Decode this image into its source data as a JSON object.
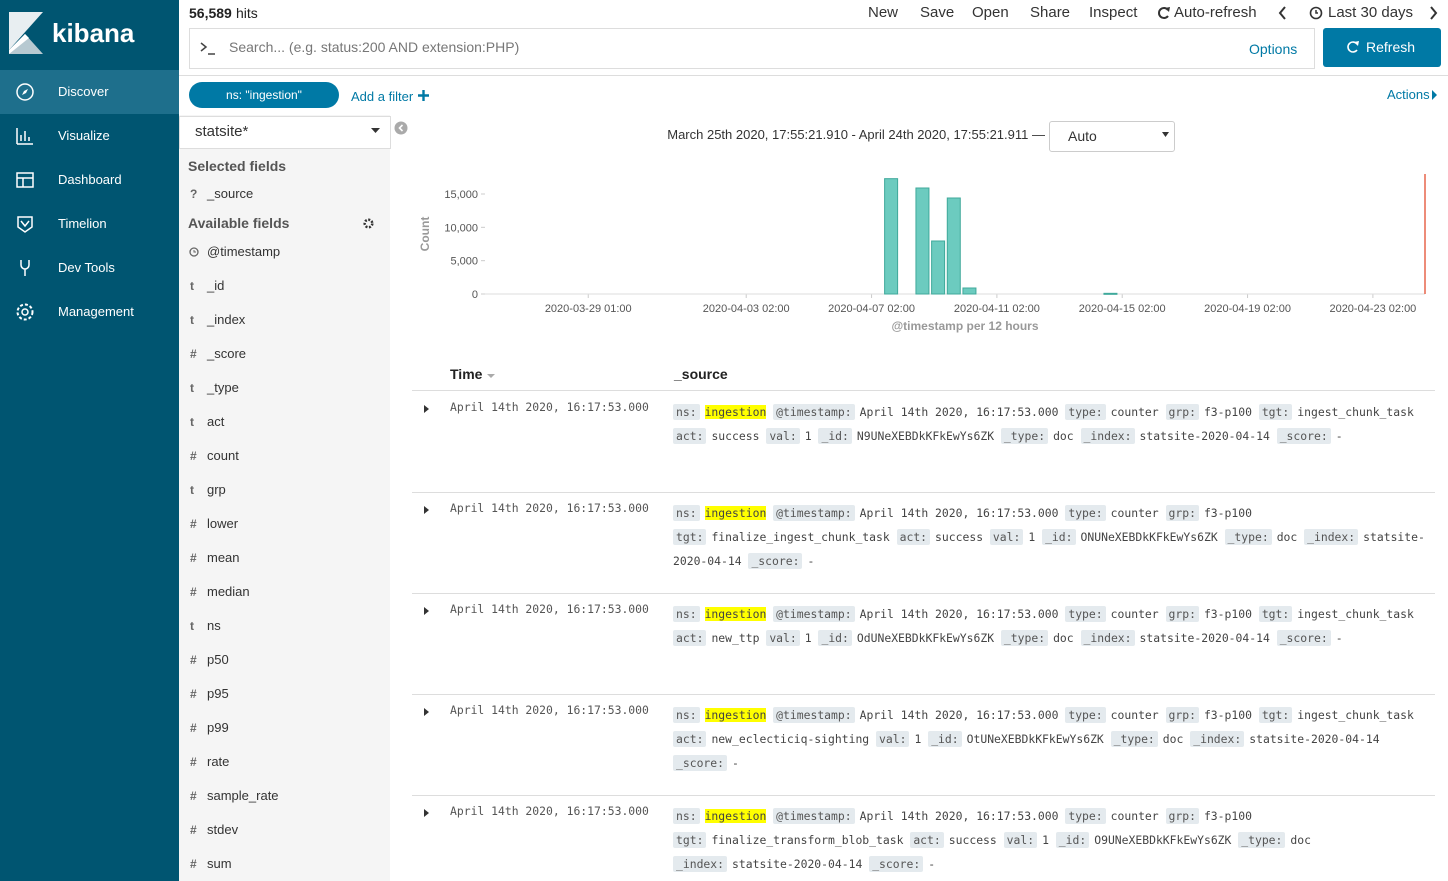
{
  "nav": {
    "logo": "kibana",
    "items": [
      "Discover",
      "Visualize",
      "Dashboard",
      "Timelion",
      "Dev Tools",
      "Management"
    ]
  },
  "top": {
    "hits": "56,589",
    "hits_label": "hits",
    "menu": [
      "New",
      "Save",
      "Open",
      "Share",
      "Inspect",
      "Auto-refresh"
    ],
    "time_picker": "Last 30 days",
    "search_placeholder": "Search... (e.g. status:200 AND extension:PHP)",
    "options": "Options",
    "refresh": "Refresh"
  },
  "filters": {
    "pill": "ns: \"ingestion\"",
    "add": "Add a filter",
    "actions": "Actions"
  },
  "sidebar": {
    "index_pattern": "statsite*",
    "selected_title": "Selected fields",
    "selected": [
      {
        "type": "?",
        "name": "_source"
      }
    ],
    "available_title": "Available fields",
    "available": [
      {
        "name": "@timestamp"
      },
      {
        "type": "t",
        "name": "_id"
      },
      {
        "type": "t",
        "name": "_index"
      },
      {
        "type": "#",
        "name": "_score"
      },
      {
        "type": "t",
        "name": "_type"
      },
      {
        "type": "t",
        "name": "act"
      },
      {
        "type": "#",
        "name": "count"
      },
      {
        "type": "t",
        "name": "grp"
      },
      {
        "type": "#",
        "name": "lower"
      },
      {
        "type": "#",
        "name": "mean"
      },
      {
        "type": "#",
        "name": "median"
      },
      {
        "type": "t",
        "name": "ns"
      },
      {
        "type": "#",
        "name": "p50"
      },
      {
        "type": "#",
        "name": "p95"
      },
      {
        "type": "#",
        "name": "p99"
      },
      {
        "type": "#",
        "name": "rate"
      },
      {
        "type": "#",
        "name": "sample_rate"
      },
      {
        "type": "#",
        "name": "stdev"
      },
      {
        "type": "#",
        "name": "sum"
      }
    ]
  },
  "time_range": "March 25th 2020, 17:55:21.910 - April 24th 2020, 17:55:21.911 —",
  "interval": "Auto",
  "chart_data": {
    "type": "bar",
    "y_label": "Count",
    "x_label": "@timestamp per 12 hours",
    "color": "#6ccbbf",
    "x": [
      "2020-04-07T12:00",
      "2020-04-08T12:00",
      "2020-04-09T00:00",
      "2020-04-09T12:00",
      "2020-04-10T00:00",
      "2020-04-14T12:00"
    ],
    "values": [
      17300,
      15900,
      7950,
      14400,
      900,
      100
    ],
    "xlim": [
      "2020-03-25T17:55",
      "2020-04-24T17:55"
    ],
    "xticks": [
      {
        "value": "2020-03-29T01:00",
        "label": "2020-03-29 01:00"
      },
      {
        "value": "2020-04-03T02:00",
        "label": "2020-04-03 02:00"
      },
      {
        "value": "2020-04-07T02:00",
        "label": "2020-04-07 02:00"
      },
      {
        "value": "2020-04-11T02:00",
        "label": "2020-04-11 02:00"
      },
      {
        "value": "2020-04-15T02:00",
        "label": "2020-04-15 02:00"
      },
      {
        "value": "2020-04-19T02:00",
        "label": "2020-04-19 02:00"
      },
      {
        "value": "2020-04-23T02:00",
        "label": "2020-04-23 02:00"
      }
    ],
    "ylim": [
      0,
      18000
    ],
    "yticks": [
      0,
      {
        "value": 5000,
        "label": "5,000"
      },
      {
        "value": 10000,
        "label": "10,000"
      },
      {
        "value": 15000,
        "label": "15,000"
      }
    ]
  },
  "table": {
    "columns": [
      "Time",
      "_source"
    ],
    "rows": [
      {
        "time": "April 14th 2020, 16:17:53.000",
        "fields": [
          {
            "key": "ns:",
            "value": "ingestion",
            "highlight": true
          },
          {
            "key": "@timestamp:",
            "value": "April 14th 2020, 16:17:53.000"
          },
          {
            "key": "type:",
            "value": "counter"
          },
          {
            "key": "grp:",
            "value": "f3-p100"
          },
          {
            "key": "tgt:",
            "value": "ingest_chunk_task"
          },
          {
            "key": "act:",
            "value": "success"
          },
          {
            "key": "val:",
            "value": "1"
          },
          {
            "key": "_id:",
            "value": "N9UNeXEBDkKFkEwYs6ZK"
          },
          {
            "key": "_type:",
            "value": "doc"
          },
          {
            "key": "_index:",
            "value": "statsite-2020-04-14"
          },
          {
            "key": "_score:",
            "value": "-"
          }
        ]
      },
      {
        "time": "April 14th 2020, 16:17:53.000",
        "fields": [
          {
            "key": "ns:",
            "value": "ingestion",
            "highlight": true
          },
          {
            "key": "@timestamp:",
            "value": "April 14th 2020, 16:17:53.000"
          },
          {
            "key": "type:",
            "value": "counter"
          },
          {
            "key": "grp:",
            "value": "f3-p100"
          },
          {
            "key": "tgt:",
            "value": "finalize_ingest_chunk_task"
          },
          {
            "key": "act:",
            "value": "success"
          },
          {
            "key": "val:",
            "value": "1"
          },
          {
            "key": "_id:",
            "value": "ONUNeXEBDkKFkEwYs6ZK"
          },
          {
            "key": "_type:",
            "value": "doc"
          },
          {
            "key": "_index:",
            "value": "statsite-2020-04-14"
          },
          {
            "key": "_score:",
            "value": "-"
          }
        ]
      },
      {
        "time": "April 14th 2020, 16:17:53.000",
        "fields": [
          {
            "key": "ns:",
            "value": "ingestion",
            "highlight": true
          },
          {
            "key": "@timestamp:",
            "value": "April 14th 2020, 16:17:53.000"
          },
          {
            "key": "type:",
            "value": "counter"
          },
          {
            "key": "grp:",
            "value": "f3-p100"
          },
          {
            "key": "tgt:",
            "value": "ingest_chunk_task"
          },
          {
            "key": "act:",
            "value": "new_ttp"
          },
          {
            "key": "val:",
            "value": "1"
          },
          {
            "key": "_id:",
            "value": "OdUNeXEBDkKFkEwYs6ZK"
          },
          {
            "key": "_type:",
            "value": "doc"
          },
          {
            "key": "_index:",
            "value": "statsite-2020-04-14"
          },
          {
            "key": "_score:",
            "value": "-"
          }
        ]
      },
      {
        "time": "April 14th 2020, 16:17:53.000",
        "fields": [
          {
            "key": "ns:",
            "value": "ingestion",
            "highlight": true
          },
          {
            "key": "@timestamp:",
            "value": "April 14th 2020, 16:17:53.000"
          },
          {
            "key": "type:",
            "value": "counter"
          },
          {
            "key": "grp:",
            "value": "f3-p100"
          },
          {
            "key": "tgt:",
            "value": "ingest_chunk_task"
          },
          {
            "key": "act:",
            "value": "new_eclecticiq-sighting"
          },
          {
            "key": "val:",
            "value": "1"
          },
          {
            "key": "_id:",
            "value": "OtUNeXEBDkKFkEwYs6ZK"
          },
          {
            "key": "_type:",
            "value": "doc"
          },
          {
            "key": "_index:",
            "value": "statsite-2020-04-14"
          },
          {
            "key": "_score:",
            "value": "-"
          }
        ]
      },
      {
        "time": "April 14th 2020, 16:17:53.000",
        "fields": [
          {
            "key": "ns:",
            "value": "ingestion",
            "highlight": true
          },
          {
            "key": "@timestamp:",
            "value": "April 14th 2020, 16:17:53.000"
          },
          {
            "key": "type:",
            "value": "counter"
          },
          {
            "key": "grp:",
            "value": "f3-p100"
          },
          {
            "key": "tgt:",
            "value": "finalize_transform_blob_task"
          },
          {
            "key": "act:",
            "value": "success"
          },
          {
            "key": "val:",
            "value": "1"
          },
          {
            "key": "_id:",
            "value": "O9UNeXEBDkKFkEwYs6ZK"
          },
          {
            "key": "_type:",
            "value": "doc"
          },
          {
            "key": "_index:",
            "value": "statsite-2020-04-14"
          },
          {
            "key": "_score:",
            "value": "-"
          }
        ]
      }
    ]
  }
}
